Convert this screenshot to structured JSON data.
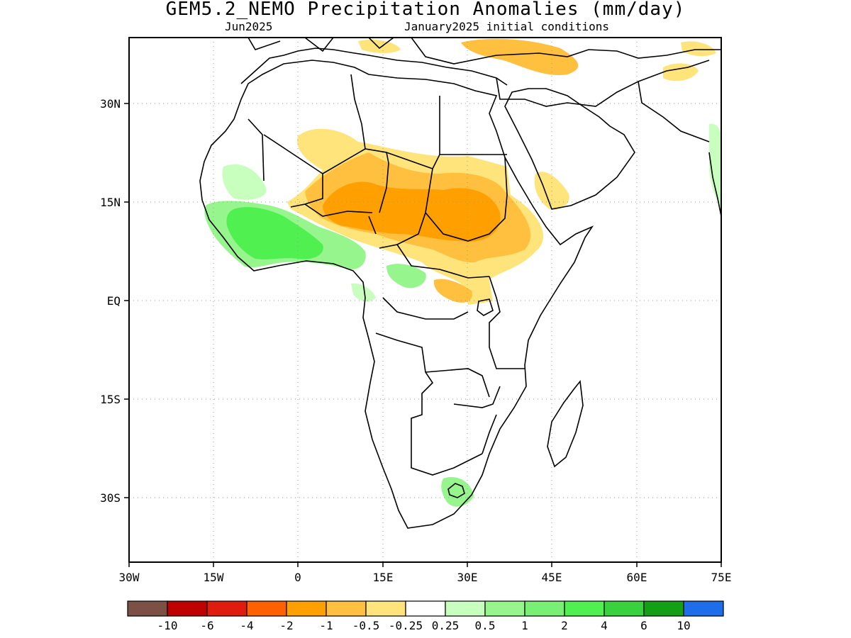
{
  "header": {
    "title": "GEM5.2_NEMO Precipitation Anomalies (mm/day)",
    "month": "Jun2025",
    "init": "January2025 initial conditions"
  },
  "axes": {
    "lon_range": [
      -30,
      75
    ],
    "lat_range": [
      -40,
      40
    ],
    "lon_ticks": [
      {
        "value": -30,
        "label": "30W"
      },
      {
        "value": -15,
        "label": "15W"
      },
      {
        "value": 0,
        "label": "0"
      },
      {
        "value": 15,
        "label": "15E"
      },
      {
        "value": 30,
        "label": "30E"
      },
      {
        "value": 45,
        "label": "45E"
      },
      {
        "value": 60,
        "label": "60E"
      },
      {
        "value": 75,
        "label": "75E"
      }
    ],
    "lat_ticks": [
      {
        "value": 30,
        "label": "30N"
      },
      {
        "value": 15,
        "label": "15N"
      },
      {
        "value": 0,
        "label": "EQ"
      },
      {
        "value": -15,
        "label": "15S"
      },
      {
        "value": -30,
        "label": "30S"
      }
    ],
    "grid": "dotted"
  },
  "legend": {
    "colors": [
      "#7b5146",
      "#be0000",
      "#e01c0d",
      "#ff6000",
      "#ffa000",
      "#ffc040",
      "#ffe47c",
      "#ffffff",
      "#c8ffbe",
      "#96f58c",
      "#78f073",
      "#50f050",
      "#37d23c",
      "#14a014",
      "#1e6eeb"
    ],
    "labels": [
      "-10",
      "-6",
      "-4",
      "-2",
      "-1",
      "-0.5",
      "-0.25",
      "0.25",
      "0.5",
      "1",
      "2",
      "4",
      "6",
      "10"
    ]
  },
  "colors": {
    "dry_light": "#ffe47c",
    "dry_mid": "#ffc040",
    "dry_strong": "#ffa000",
    "wet_light": "#c8ffbe",
    "wet_mid": "#96f58c",
    "wet_strong": "#78f073",
    "wet_heavy": "#50f050",
    "coast": "#000000"
  }
}
